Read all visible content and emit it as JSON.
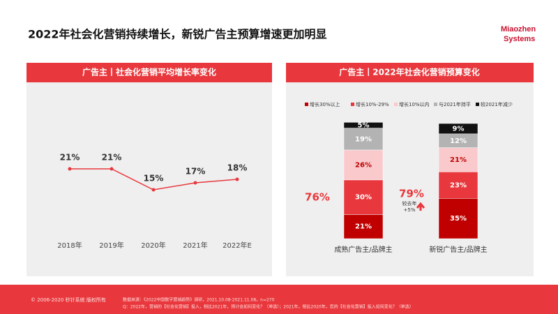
{
  "title": "2022年社会化营销持续增长，新锐广告主预算增速更加明显",
  "logo": [
    "Miaozhen",
    "Systems"
  ],
  "footer": {
    "copyright": "© 2006-2020 秒针系统 版权所有",
    "source": "数据来源：《2022中国数字营销趋势》调研，2021.10.08-2021.11.08，n=270",
    "question": "Q：2022年，营销的【社会化营销】投入，相比2021年，预计会如何变化？（单选）；2021年，相比2020年，您的【社会化营销】投入如何变化？（单选）"
  },
  "chart_data": [
    {
      "type": "line",
      "title": "广告主丨社会化营销平均增长率变化",
      "categories": [
        "2018年",
        "2019年",
        "2020年",
        "2021年",
        "2022年E"
      ],
      "values": [
        21,
        21,
        15,
        17,
        18
      ],
      "value_labels": [
        "21%",
        "21%",
        "15%",
        "17%",
        "18%"
      ],
      "color": "#e8383d",
      "ylim": [
        0,
        40
      ]
    },
    {
      "type": "stacked_bar",
      "title": "广告主丨2022年社会化营销预算变化",
      "categories": [
        "成熟广告主/品牌主",
        "新锐广告主/品牌主"
      ],
      "series": [
        {
          "name": "增长30%以上",
          "color": "#c00000",
          "values": [
            21,
            35
          ],
          "value_labels": [
            "21%",
            "35%"
          ]
        },
        {
          "name": "增长10%-29%",
          "color": "#e8383d",
          "values": [
            30,
            23
          ],
          "value_labels": [
            "30%",
            "23%"
          ]
        },
        {
          "name": "增长10%以内",
          "color": "#f9c9cc",
          "values": [
            26,
            21
          ],
          "value_labels": [
            "26%",
            "21%"
          ]
        },
        {
          "name": "与2021年持平",
          "color": "#b3b3b3",
          "values": [
            19,
            12
          ],
          "value_labels": [
            "19%",
            "12%"
          ]
        },
        {
          "name": "较2021年减少",
          "color": "#111111",
          "values": [
            5,
            9
          ],
          "value_labels": [
            "5%",
            "9%"
          ]
        }
      ],
      "ylim": [
        0,
        100
      ],
      "annotations": [
        "76%",
        "79%",
        "较去年",
        "+5%"
      ]
    }
  ]
}
